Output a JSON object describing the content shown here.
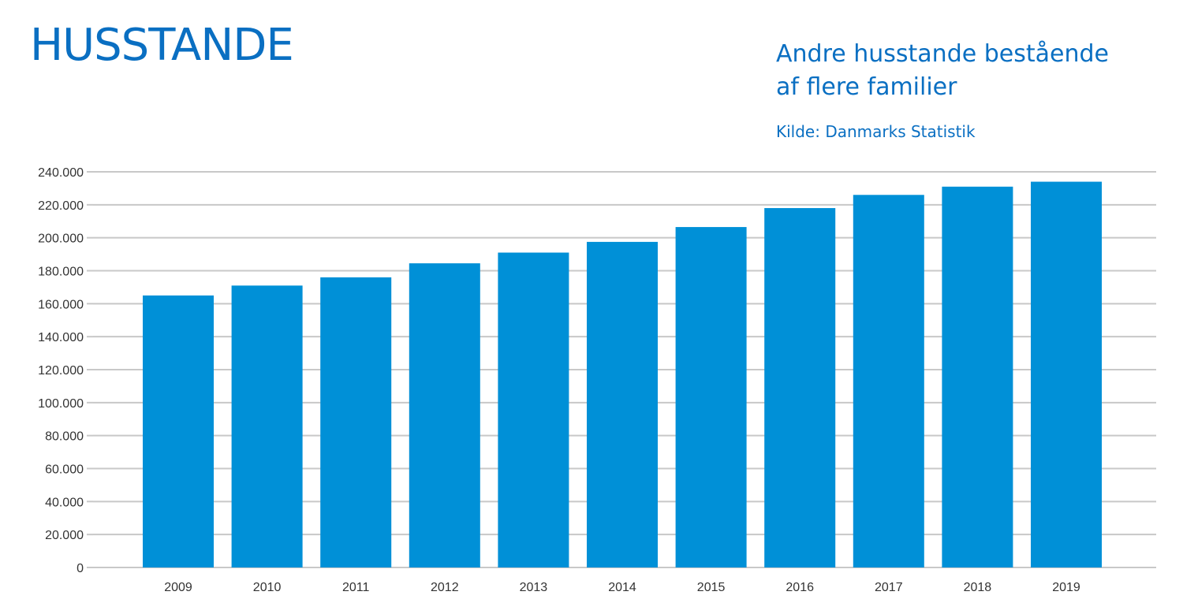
{
  "header": {
    "title": "HUSSTANDE",
    "subtitle": "Andre husstande bestående\naf flere familier",
    "source": "Kilde: Danmarks Statistik"
  },
  "colors": {
    "title": "#0a6fc2",
    "bar": "#0090d7",
    "grid": "#c8c8c8",
    "axis_text": "#333333"
  },
  "chart_data": {
    "type": "bar",
    "categories": [
      "2009",
      "2010",
      "2011",
      "2012",
      "2013",
      "2014",
      "2015",
      "2016",
      "2017",
      "2018",
      "2019"
    ],
    "values": [
      165000,
      171000,
      176000,
      184500,
      191000,
      197500,
      206500,
      218000,
      226000,
      231000,
      234000
    ],
    "ylim": [
      0,
      240000
    ],
    "yticks": [
      0,
      20000,
      40000,
      60000,
      80000,
      100000,
      120000,
      140000,
      160000,
      180000,
      200000,
      220000,
      240000
    ],
    "ytick_labels": [
      "0",
      "20.000",
      "40.000",
      "60.000",
      "80.000",
      "100.000",
      "120.000",
      "140.000",
      "160.000",
      "180.000",
      "200.000",
      "220.000",
      "240.000"
    ],
    "grid": true,
    "legend": false,
    "title": "",
    "xlabel": "",
    "ylabel": ""
  }
}
